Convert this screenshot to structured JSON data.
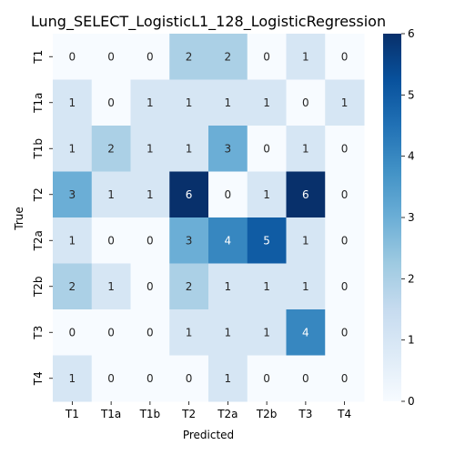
{
  "chart_data": {
    "type": "heatmap",
    "title": "Lung_SELECT_LogisticL1_128_LogisticRegression",
    "xlabel": "Predicted",
    "ylabel": "True",
    "x_categories": [
      "T1",
      "T1a",
      "T1b",
      "T2",
      "T2a",
      "T2b",
      "T3",
      "T4"
    ],
    "y_categories": [
      "T1",
      "T1a",
      "T1b",
      "T2",
      "T2a",
      "T2b",
      "T3",
      "T4"
    ],
    "values": [
      [
        0,
        0,
        0,
        2,
        2,
        0,
        1,
        0
      ],
      [
        1,
        0,
        1,
        1,
        1,
        1,
        0,
        1
      ],
      [
        1,
        2,
        1,
        1,
        3,
        0,
        1,
        0
      ],
      [
        3,
        1,
        1,
        6,
        0,
        1,
        6,
        0
      ],
      [
        1,
        0,
        0,
        3,
        4,
        5,
        1,
        0
      ],
      [
        2,
        1,
        0,
        2,
        1,
        1,
        1,
        0
      ],
      [
        0,
        0,
        0,
        1,
        1,
        1,
        4,
        0
      ],
      [
        1,
        0,
        0,
        0,
        1,
        0,
        0,
        0
      ]
    ],
    "value_range": [
      0,
      6
    ],
    "colorbar_ticks": [
      0,
      1,
      2,
      3,
      4,
      5,
      6
    ],
    "colormap": "Blues"
  }
}
